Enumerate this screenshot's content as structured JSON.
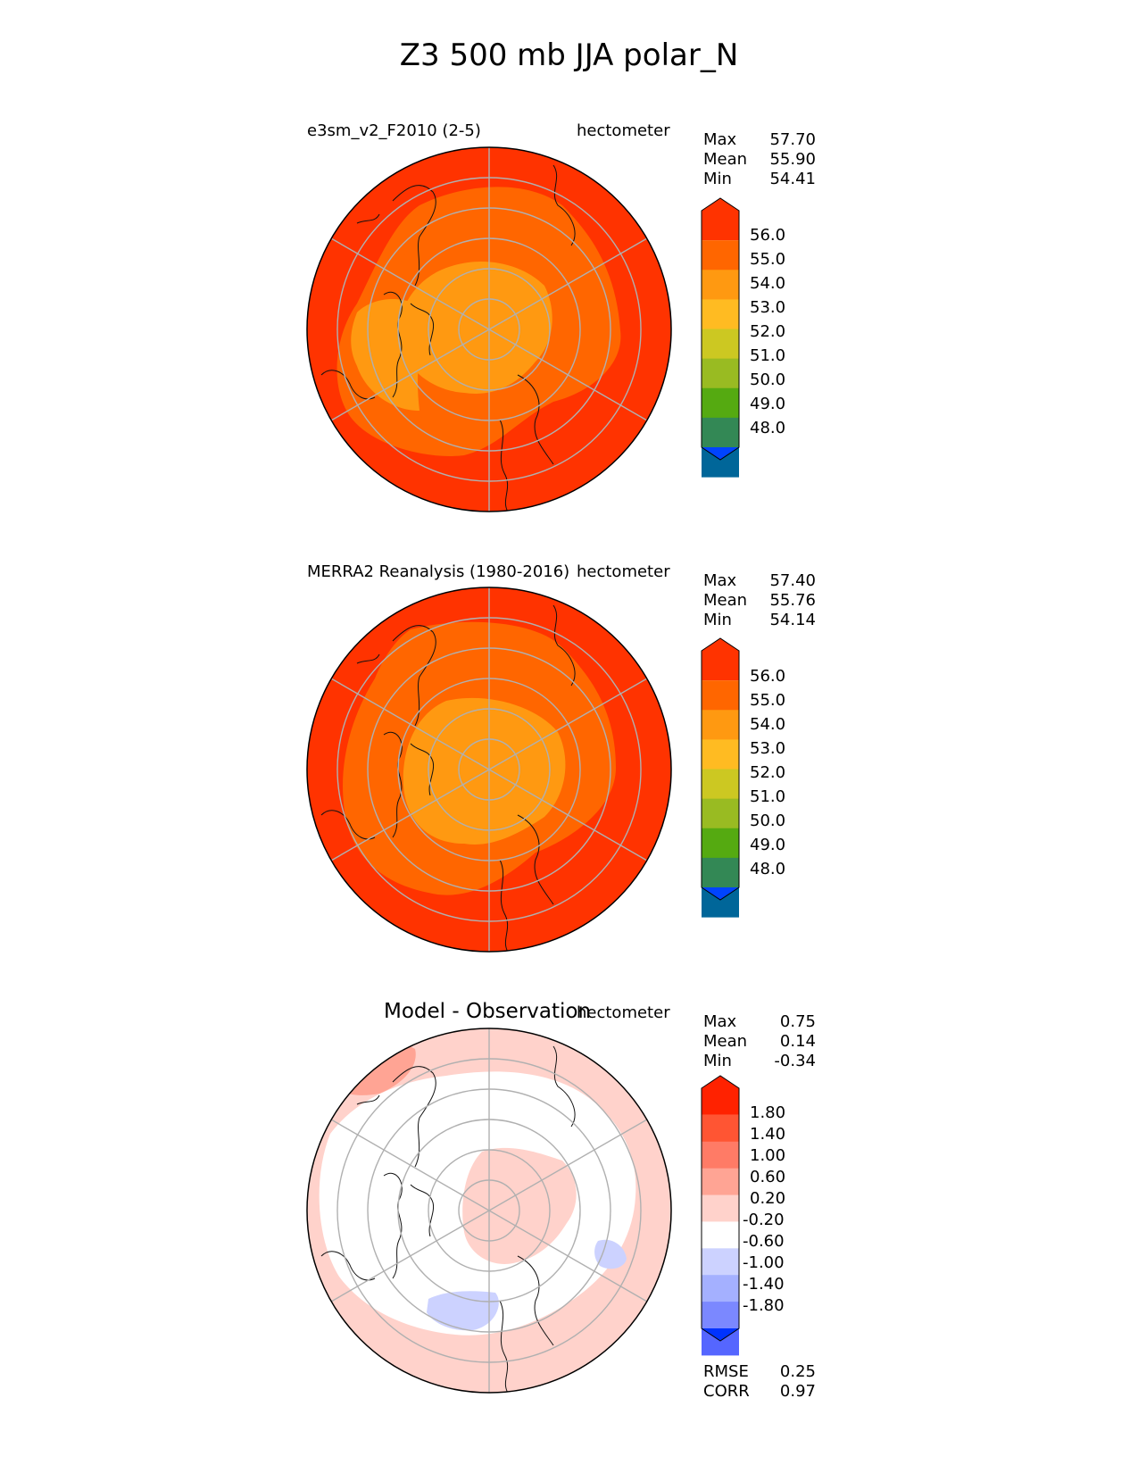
{
  "title": "Z3 500 mb JJA polar_N",
  "panels": [
    {
      "id": "test",
      "left_title": "e3sm_v2_F2010 (2-5)",
      "units": "hectometer",
      "stats": [
        {
          "label": "Max",
          "value": "57.70"
        },
        {
          "label": "Mean",
          "value": "55.90"
        },
        {
          "label": "Min",
          "value": "54.41"
        }
      ],
      "colorbar": {
        "ticks": [
          "56.0",
          "55.0",
          "54.0",
          "53.0",
          "52.0",
          "51.0",
          "50.0",
          "49.0",
          "48.0"
        ],
        "colors": [
          "#ff3300",
          "#ff6600",
          "#ff9911",
          "#ffbb22",
          "#ccc822",
          "#99bb22",
          "#55aa11",
          "#338855",
          "#006699",
          "#0044ff"
        ]
      }
    },
    {
      "id": "ref",
      "left_title": "MERRA2 Reanalysis (1980-2016)",
      "units": "hectometer",
      "stats": [
        {
          "label": "Max",
          "value": "57.40"
        },
        {
          "label": "Mean",
          "value": "55.76"
        },
        {
          "label": "Min",
          "value": "54.14"
        }
      ],
      "colorbar": {
        "ticks": [
          "56.0",
          "55.0",
          "54.0",
          "53.0",
          "52.0",
          "51.0",
          "50.0",
          "49.0",
          "48.0"
        ],
        "colors": [
          "#ff3300",
          "#ff6600",
          "#ff9911",
          "#ffbb22",
          "#ccc822",
          "#99bb22",
          "#55aa11",
          "#338855",
          "#006699",
          "#0044ff"
        ]
      }
    },
    {
      "id": "diff",
      "center_title": "Model - Observation",
      "units": "hectometer",
      "stats": [
        {
          "label": "Max",
          "value": "0.75"
        },
        {
          "label": "Mean",
          "value": "0.14"
        },
        {
          "label": "Min",
          "value": "-0.34"
        }
      ],
      "colorbar": {
        "ticks": [
          "1.80",
          "1.40",
          "1.00",
          "0.60",
          "0.20",
          "-0.20",
          "-0.60",
          "-1.00",
          "-1.40",
          "-1.80"
        ],
        "colors": [
          "#ff2200",
          "#ff5533",
          "#ff7b66",
          "#ffa494",
          "#ffd2cb",
          "#ffffff",
          "#ccd2ff",
          "#a4b0ff",
          "#7b88ff",
          "#5566ff",
          "#0033ff"
        ]
      },
      "metrics": [
        {
          "label": "RMSE",
          "value": "0.25"
        },
        {
          "label": "CORR",
          "value": "0.97"
        }
      ]
    }
  ]
}
